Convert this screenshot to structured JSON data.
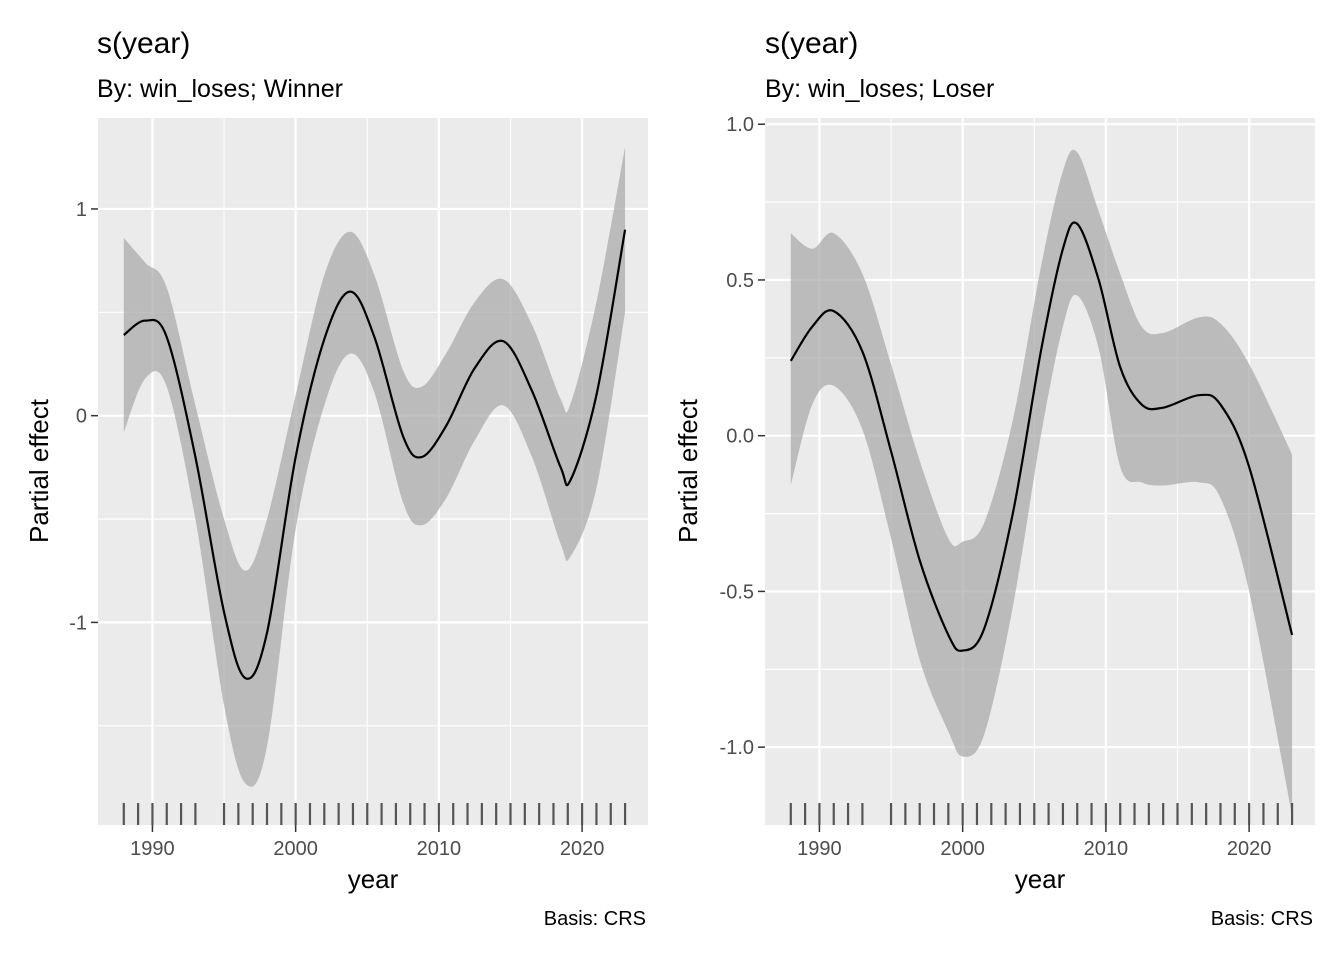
{
  "chart_data": [
    {
      "type": "line",
      "title": "s(year)",
      "subtitle": "By: win_loses; Winner",
      "xlabel": "year",
      "ylabel": "Partial effect",
      "caption": "Basis: CRS",
      "xlim": [
        1986.2,
        1987.9
      ],
      "ylim": [
        -1.98,
        1.44
      ],
      "x_ticks": [
        1990,
        2000,
        2010,
        2020
      ],
      "x_tick_labels": [
        "1990",
        "2000",
        "2010",
        "2020"
      ],
      "y_ticks": [
        -1,
        0,
        1
      ],
      "y_tick_labels": [
        "-1",
        "0",
        "1"
      ],
      "grid": true,
      "series": [
        {
          "x": [
            1988,
            1989.5,
            1991,
            1993,
            1995,
            1996.5,
            1998,
            2000,
            2002,
            2003.8,
            2005.5,
            2007.5,
            2008.8,
            2010.5,
            2012.5,
            2014.5,
            2016.5,
            2018.5,
            2019.2,
            2021,
            2023
          ],
          "y": [
            0.39,
            0.46,
            0.38,
            -0.2,
            -0.95,
            -1.27,
            -1.05,
            -0.2,
            0.37,
            0.6,
            0.38,
            -0.1,
            -0.2,
            -0.05,
            0.23,
            0.36,
            0.12,
            -0.25,
            -0.31,
            0.1,
            0.9
          ],
          "lower": [
            -0.08,
            0.18,
            0.14,
            -0.5,
            -1.4,
            -1.78,
            -1.6,
            -0.55,
            0.05,
            0.3,
            0.11,
            -0.42,
            -0.53,
            -0.4,
            -0.12,
            0.05,
            -0.2,
            -0.62,
            -0.68,
            -0.35,
            0.5
          ],
          "upper": [
            0.86,
            0.74,
            0.62,
            0.05,
            -0.5,
            -0.75,
            -0.5,
            0.1,
            0.68,
            0.89,
            0.68,
            0.22,
            0.14,
            0.3,
            0.55,
            0.66,
            0.44,
            0.08,
            0.06,
            0.55,
            1.3
          ]
        }
      ],
      "rug_x": [
        1988,
        1989,
        1990,
        1991,
        1992,
        1993,
        1995,
        1996,
        1997,
        1998,
        1999,
        2000,
        2001,
        2002,
        2003,
        2004,
        2005,
        2006,
        2007,
        2008,
        2009,
        2010,
        2011,
        2012,
        2013,
        2014,
        2015,
        2016,
        2017,
        2018,
        2019,
        2020,
        2021,
        2022,
        2023
      ]
    },
    {
      "type": "line",
      "title": "s(year)",
      "subtitle": "By: win_loses; Loser",
      "xlabel": "year",
      "ylabel": "Partial effect",
      "caption": "Basis: CRS",
      "xlim": [
        1986.2,
        1987.9
      ],
      "ylim": [
        -1.25,
        1.02
      ],
      "x_ticks": [
        1990,
        2000,
        2010,
        2020
      ],
      "x_tick_labels": [
        "1990",
        "2000",
        "2010",
        "2020"
      ],
      "y_ticks": [
        -1.0,
        -0.5,
        0.0,
        0.5,
        1.0
      ],
      "y_tick_labels": [
        "-1.0",
        "-0.5",
        "0.0",
        "0.5",
        "1.0"
      ],
      "grid": true,
      "series": [
        {
          "x": [
            1988,
            1989.5,
            1991,
            1993,
            1995,
            1997,
            1999,
            2000,
            2001.5,
            2003.5,
            2005.5,
            2007,
            2008,
            2009.5,
            2011,
            2012.5,
            2014,
            2016.5,
            2018,
            2020,
            2023
          ],
          "y": [
            0.24,
            0.35,
            0.4,
            0.27,
            -0.05,
            -0.4,
            -0.64,
            -0.69,
            -0.62,
            -0.25,
            0.28,
            0.6,
            0.68,
            0.5,
            0.22,
            0.1,
            0.09,
            0.13,
            0.1,
            -0.1,
            -0.64
          ],
          "lower": [
            -0.16,
            0.1,
            0.16,
            0.02,
            -0.33,
            -0.72,
            -0.95,
            -1.03,
            -0.96,
            -0.55,
            0.01,
            0.35,
            0.45,
            0.28,
            -0.1,
            -0.15,
            -0.16,
            -0.15,
            -0.2,
            -0.5,
            -1.22
          ],
          "upper": [
            0.65,
            0.6,
            0.65,
            0.52,
            0.23,
            -0.08,
            -0.33,
            -0.34,
            -0.28,
            0.05,
            0.55,
            0.85,
            0.91,
            0.72,
            0.52,
            0.35,
            0.33,
            0.38,
            0.36,
            0.23,
            -0.06
          ]
        }
      ],
      "rug_x": [
        1988,
        1989,
        1990,
        1991,
        1992,
        1993,
        1995,
        1996,
        1997,
        1998,
        1999,
        2000,
        2001,
        2002,
        2003,
        2004,
        2005,
        2006,
        2007,
        2008,
        2009,
        2010,
        2011,
        2012,
        2013,
        2014,
        2015,
        2016,
        2017,
        2018,
        2019,
        2020,
        2021,
        2022,
        2023
      ]
    }
  ]
}
